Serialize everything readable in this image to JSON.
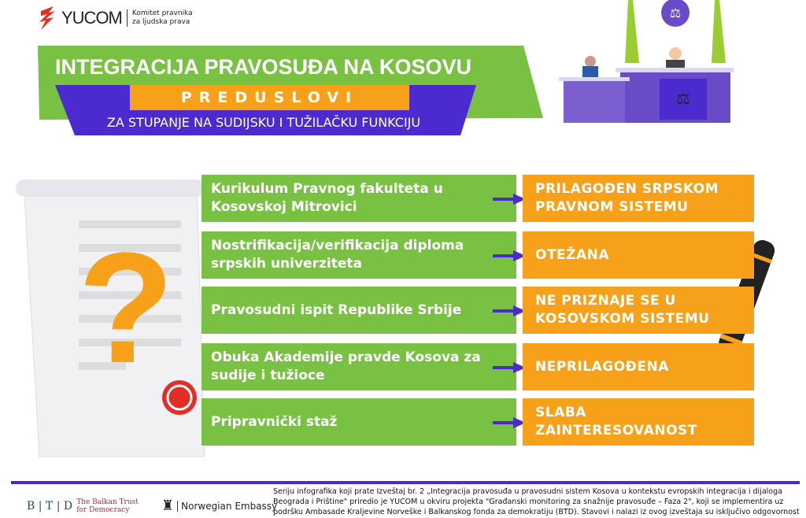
{
  "logo": {
    "name": "YUCOM",
    "subtitle_line1": "Komitet pravnika",
    "subtitle_line2": "za ljudska prava"
  },
  "banner": {
    "title": "INTEGRACIJA PRAVOSUĐA NA KOSOVU",
    "tag": "PREDUSLOVI",
    "subtitle": "ZA STUPANJE NA SUDIJSKU I TUŽILAČKU FUNKCIJU"
  },
  "rows": [
    {
      "item": "Kurikulum Pravnog fakulteta u Kosovskoj Mitrovici",
      "status": "PRILAGOĐEN SRPSKOM PRAVNOM SISTEMU"
    },
    {
      "item": "Nostrifikacija/verifikacija diploma srpskih univerziteta",
      "status": "OTEŽANA"
    },
    {
      "item": "Pravosudni ispit Republike Srbije",
      "status": "NE PRIZNAJE SE U KOSOVSKOM SISTEMU"
    },
    {
      "item": "Obuka Akademije pravde Kosova za sudije i tužioce",
      "status": "NEPRILAGOĐENA"
    },
    {
      "item": "Pripravnički staž",
      "status": "SLABA ZAINTERESOVANOST"
    }
  ],
  "footer": {
    "btd_letters": "B | T | D",
    "btd_name": "The Balkan Trust for Democracy",
    "norway": "Norwegian Embassy",
    "text": "Seriju infografika koji prate Izveštaj br. 2 „Integracija pravosuđa u pravosudni sistem Kosova u kontekstu evropskih integracija i dijaloga Beograda i Prištine\" priredio je YUCOM u okviru projekta \"Građanski monitoring za snažnije pravosuđe – Faza 2\", koji se implementira uz podršku Ambasade Kraljevine Norveške i Balkanskog fonda za demokratiju (BTD). Stavovi i nalazi iz ovog izveštaja su isključivo odgovornost"
  },
  "colors": {
    "green": "#78c142",
    "purple": "#4b2bd0",
    "orange": "#f7a11a",
    "red": "#e52d27"
  }
}
